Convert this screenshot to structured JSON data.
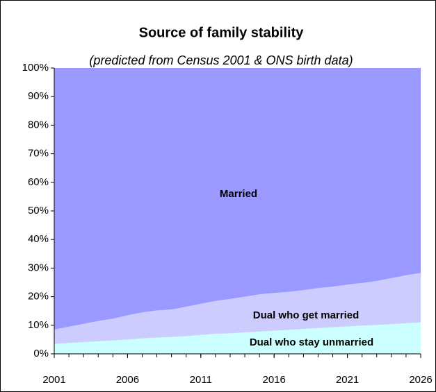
{
  "chart_data": {
    "type": "stacked_area",
    "title": "Source of family stability",
    "subtitle": "(predicted from Census 2001 & ONS birth data)",
    "x": [
      2001,
      2002,
      2003,
      2004,
      2005,
      2006,
      2007,
      2008,
      2009,
      2010,
      2011,
      2012,
      2013,
      2014,
      2015,
      2016,
      2017,
      2018,
      2019,
      2020,
      2021,
      2022,
      2023,
      2024,
      2025,
      2026
    ],
    "xlim": [
      2001,
      2026
    ],
    "xticks": [
      2001,
      2006,
      2011,
      2016,
      2021,
      2026
    ],
    "ylim": [
      0,
      100
    ],
    "yticks": [
      {
        "value": 0,
        "label": "0%"
      },
      {
        "value": 10,
        "label": "10%"
      },
      {
        "value": 20,
        "label": "20%"
      },
      {
        "value": 30,
        "label": "30%"
      },
      {
        "value": 40,
        "label": "40%"
      },
      {
        "value": 50,
        "label": "50%"
      },
      {
        "value": 60,
        "label": "60%"
      },
      {
        "value": 70,
        "label": "70%"
      },
      {
        "value": 80,
        "label": "80%"
      },
      {
        "value": 90,
        "label": "90%"
      },
      {
        "value": 100,
        "label": "100%"
      }
    ],
    "series": [
      {
        "name": "Dual who stay unmarried",
        "color": "#ccffff",
        "values": [
          3.5,
          3.8,
          4.1,
          4.4,
          4.7,
          5.0,
          5.4,
          5.7,
          5.9,
          6.2,
          6.6,
          7.0,
          7.2,
          7.5,
          7.8,
          8.1,
          8.4,
          8.7,
          9.0,
          9.3,
          9.6,
          9.9,
          10.1,
          10.4,
          10.7,
          11.0
        ]
      },
      {
        "name": "Dual who get married",
        "color": "#ccccff",
        "values": [
          5.0,
          5.7,
          6.4,
          7.1,
          7.6,
          8.5,
          9.1,
          9.5,
          9.6,
          10.3,
          10.9,
          11.5,
          12.0,
          12.5,
          13.0,
          13.2,
          13.3,
          13.6,
          14.0,
          14.2,
          14.6,
          14.9,
          15.4,
          16.1,
          16.8,
          17.3
        ]
      },
      {
        "name": "Married",
        "color": "#9999ff",
        "values": [
          91.5,
          90.5,
          89.5,
          88.5,
          87.7,
          86.5,
          85.5,
          84.8,
          84.5,
          83.5,
          82.5,
          81.5,
          80.8,
          80.0,
          79.2,
          78.7,
          78.3,
          77.7,
          77.0,
          76.5,
          75.8,
          75.2,
          74.5,
          73.5,
          72.5,
          71.7
        ]
      }
    ]
  }
}
